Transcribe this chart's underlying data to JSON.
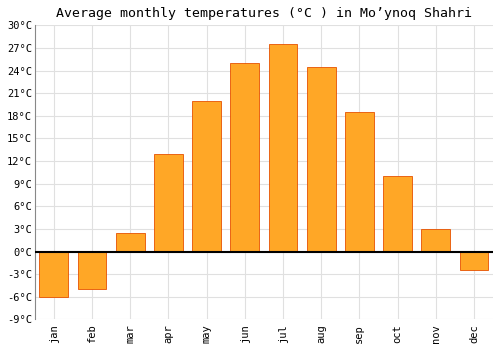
{
  "title": "Average monthly temperatures (°C ) in Moʼynoq Shahri",
  "months": [
    "jan",
    "feb",
    "mar",
    "apr",
    "may",
    "jun",
    "jul",
    "aug",
    "sep",
    "oct",
    "nov",
    "dec"
  ],
  "values": [
    -6,
    -5,
    2.5,
    13,
    20,
    25,
    27.5,
    24.5,
    18.5,
    10,
    3,
    -2.5
  ],
  "bar_color": "#FFA726",
  "bar_edge_color": "#E65100",
  "ylim": [
    -9,
    30
  ],
  "yticks": [
    -9,
    -6,
    -3,
    0,
    3,
    6,
    9,
    12,
    15,
    18,
    21,
    24,
    27,
    30
  ],
  "ytick_labels": [
    "-9°C",
    "-6°C",
    "-3°C",
    "0°C",
    "3°C",
    "6°C",
    "9°C",
    "12°C",
    "15°C",
    "18°C",
    "21°C",
    "24°C",
    "27°C",
    "30°C"
  ],
  "grid_color": "#e0e0e0",
  "background_color": "#ffffff",
  "title_fontsize": 9.5,
  "tick_fontsize": 7.5,
  "xlabel_rotation": 90,
  "bar_width": 0.75
}
